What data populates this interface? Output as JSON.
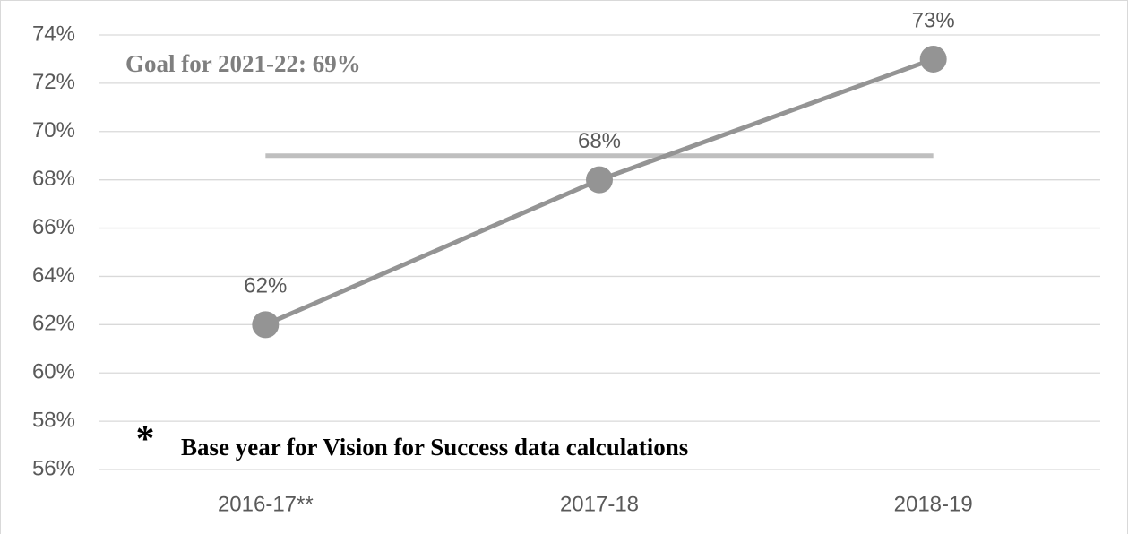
{
  "chart_data": {
    "type": "line",
    "categories": [
      "2016-17**",
      "2017-18",
      "2018-19"
    ],
    "series": [
      {
        "color": "#949494",
        "values": [
          62,
          68,
          73
        ],
        "value_labels": [
          "62%",
          "68%",
          "73%"
        ]
      }
    ],
    "goal_line": {
      "value": 69,
      "color": "#bfbfbf"
    },
    "annotations": [
      "Goal for 2021-22: 69%",
      "*",
      "Base year for Vision for Success data calculations"
    ],
    "ylim": [
      56,
      74
    ],
    "yticks": [
      {
        "value": 56,
        "label": "56%"
      },
      {
        "value": 58,
        "label": "58%"
      },
      {
        "value": 60,
        "label": "60%"
      },
      {
        "value": 62,
        "label": "62%"
      },
      {
        "value": 64,
        "label": "64%"
      },
      {
        "value": 66,
        "label": "66%"
      },
      {
        "value": 68,
        "label": "68%"
      },
      {
        "value": 70,
        "label": "70%"
      },
      {
        "value": 72,
        "label": "72%"
      },
      {
        "value": 74,
        "label": "74%"
      }
    ],
    "grid": true
  }
}
